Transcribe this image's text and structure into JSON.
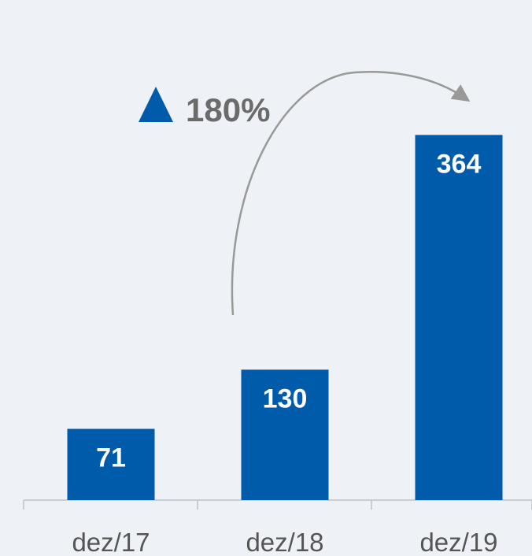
{
  "chart_data": {
    "type": "bar",
    "categories": [
      "dez/17",
      "dez/18",
      "dez/19"
    ],
    "values": [
      71,
      130,
      364
    ],
    "data_labels": [
      "71",
      "130",
      "364"
    ],
    "title": "",
    "xlabel": "",
    "ylabel": "",
    "ylim": [
      0,
      420
    ],
    "grid": false,
    "legend": "none",
    "annotation": {
      "text": "180%",
      "symbol": "up-triangle",
      "from_category": "dez/18",
      "to_category": "dez/19"
    },
    "colors": {
      "bar": "#005bab",
      "triangle": "#005bab",
      "arrow": "#999999",
      "axis": "#c9ced4",
      "background": "#eef2f6"
    }
  }
}
